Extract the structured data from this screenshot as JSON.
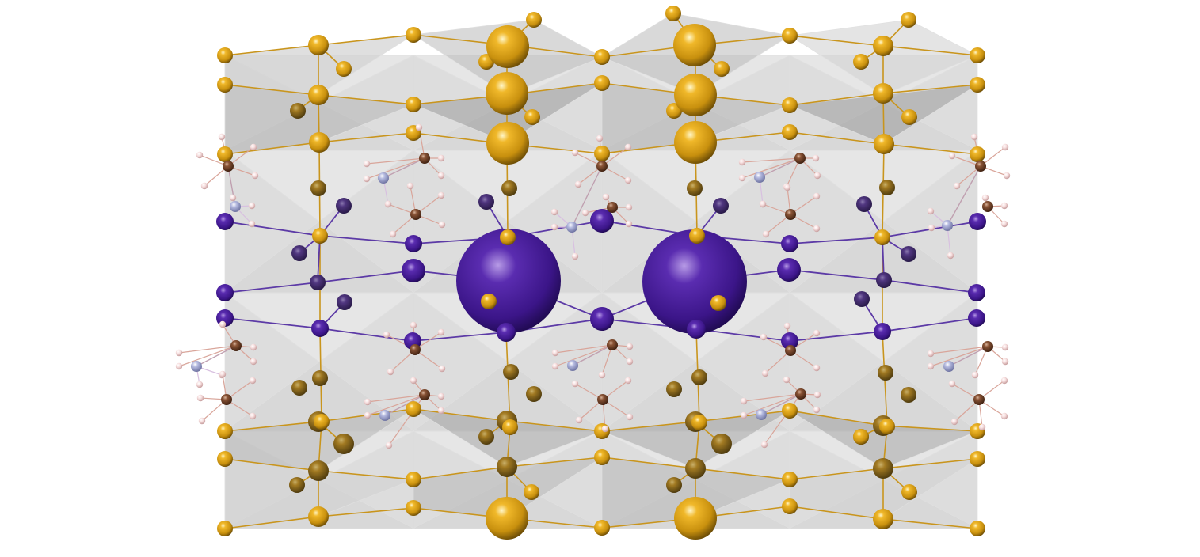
{
  "viewer": {
    "background": "#ffffff"
  },
  "structure": {
    "elements": [
      {
        "symbol": "Au",
        "color": "#d49a12",
        "role": "metal"
      },
      {
        "symbol": "I",
        "color": "#4b1f9c",
        "role": "halide"
      },
      {
        "symbol": "C",
        "color": "#7a4a30",
        "role": "organic"
      },
      {
        "symbol": "N",
        "color": "#a8aed6",
        "role": "organic"
      },
      {
        "symbol": "H",
        "color": "#f2d6d6",
        "role": "organic"
      }
    ],
    "bond_colors": {
      "Au-Au": "#c9951d",
      "Au-I": "#5c3aa6",
      "I-I": "#5c3aa6",
      "C-H": "#d9a59a",
      "N-H": "#d8c0e0",
      "C-N": "#c0a0b0"
    },
    "polyhedra": {
      "face_light": "#d2d2d2",
      "face_mid": "#b4b4b4",
      "face_dark": "#8e8e8e",
      "edge": "#e0e0e0"
    }
  }
}
